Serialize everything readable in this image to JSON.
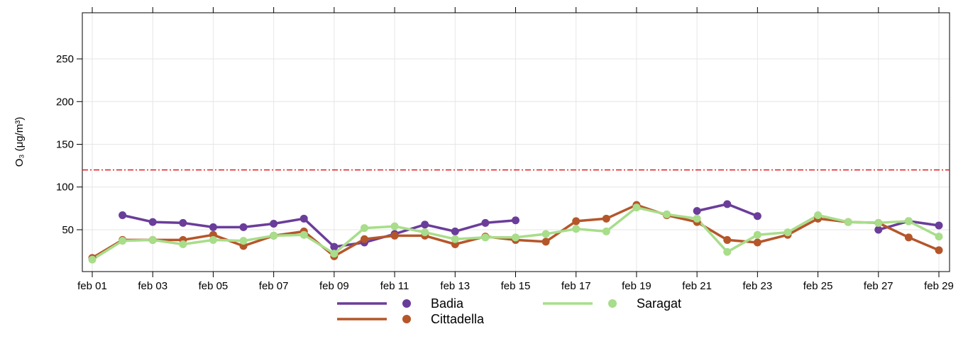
{
  "chart_data": {
    "type": "line",
    "y_label": "O₃ (μg/m³)",
    "categories": [
      "feb 01",
      null,
      "feb 03",
      null,
      "feb 05",
      null,
      "feb 07",
      null,
      "feb 09",
      null,
      "feb 11",
      null,
      "feb 13",
      null,
      "feb 15",
      null,
      "feb 17",
      null,
      "feb 19",
      null,
      "feb 21",
      null,
      "feb 23",
      null,
      "feb 25",
      null,
      "feb 27",
      null,
      "feb 29"
    ],
    "series": [
      {
        "name": "Badia",
        "color": "#6a3d9a",
        "values": [
          null,
          67,
          59,
          58,
          53,
          53,
          57,
          63,
          30,
          35,
          45,
          56,
          48,
          58,
          61,
          null,
          null,
          null,
          null,
          null,
          72,
          80,
          66,
          null,
          null,
          null,
          50,
          60,
          55
        ]
      },
      {
        "name": "Cittadella",
        "color": "#b5562a",
        "values": [
          17,
          38,
          38,
          38,
          44,
          31,
          43,
          48,
          19,
          39,
          43,
          43,
          33,
          42,
          38,
          36,
          60,
          63,
          79,
          67,
          59,
          38,
          35,
          44,
          63,
          59,
          58,
          41,
          26
        ]
      },
      {
        "name": "Saragat",
        "color": "#a8dd8a",
        "values": [
          15,
          37,
          38,
          33,
          38,
          37,
          43,
          44,
          22,
          52,
          54,
          47,
          39,
          41,
          41,
          45,
          51,
          48,
          76,
          68,
          63,
          24,
          44,
          47,
          67,
          59,
          58,
          60,
          42
        ]
      }
    ],
    "ylim": [
      1,
      304
    ],
    "yticks": [
      50,
      100,
      150,
      200,
      250
    ],
    "threshold": 120,
    "threshold_color": "#e41a1c",
    "grid": true,
    "legend": "bottom"
  }
}
